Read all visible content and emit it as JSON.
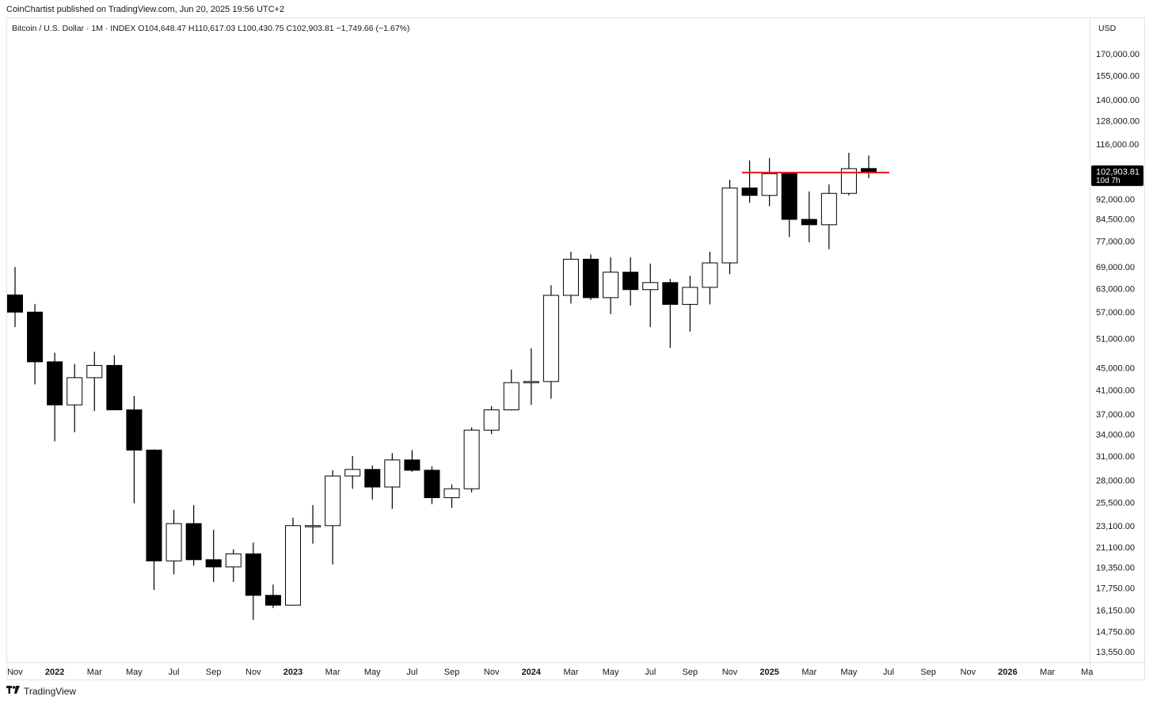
{
  "publisher_line": "CoinChartist published on TradingView.com, Jun 20, 2025 19:56 UTC+2",
  "symbol_line": "Bitcoin / U.S. Dollar · 1M · INDEX   O104,648.47   H110,617.03   L100,430.75   C102,903.81   −1,749.66 (−1.67%)",
  "currency": "USD",
  "footer": {
    "brand": "TradingView",
    "icon": "tradingview-logo-icon"
  },
  "colors": {
    "up_fill": "#ffffff",
    "down_fill": "#000000",
    "outline": "#000000",
    "resistance_line": "#e5141e",
    "price_label_bg": "#000000"
  },
  "chart_data": {
    "type": "candlestick",
    "scale": "log",
    "interval": "1M",
    "grid": false,
    "x_labels": [
      "Nov",
      "2022",
      "Mar",
      "May",
      "Jul",
      "Sep",
      "Nov",
      "2023",
      "Mar",
      "May",
      "Jul",
      "Sep",
      "Nov",
      "2024",
      "Mar",
      "May",
      "Jul",
      "Sep",
      "Nov",
      "2025",
      "Mar",
      "May",
      "Jul",
      "Sep",
      "Nov",
      "2026",
      "Mar",
      "Ma"
    ],
    "y_ticks": [
      "170,000.00",
      "155,000.00",
      "140,000.00",
      "128,000.00",
      "116,000.00",
      "92,000.00",
      "84,500.00",
      "77,000.00",
      "69,000.00",
      "63,000.00",
      "57,000.00",
      "51,000.00",
      "45,000.00",
      "41,000.00",
      "37,000.00",
      "34,000.00",
      "31,000.00",
      "28,000.00",
      "25,500.00",
      "23,100.00",
      "21,100.00",
      "19,350.00",
      "17,750.00",
      "16,150.00",
      "14,750.00",
      "13,550.00"
    ],
    "ohlc": [
      {
        "o": 61300,
        "h": 69000,
        "l": 53500,
        "c": 57000
      },
      {
        "o": 57000,
        "h": 59000,
        "l": 42000,
        "c": 46200
      },
      {
        "o": 46200,
        "h": 48000,
        "l": 33000,
        "c": 38500
      },
      {
        "o": 38500,
        "h": 45800,
        "l": 34300,
        "c": 43200
      },
      {
        "o": 43200,
        "h": 48200,
        "l": 37500,
        "c": 45500
      },
      {
        "o": 45500,
        "h": 47500,
        "l": 37700,
        "c": 37700
      },
      {
        "o": 37700,
        "h": 40000,
        "l": 25400,
        "c": 31800
      },
      {
        "o": 31800,
        "h": 31900,
        "l": 17600,
        "c": 19900
      },
      {
        "o": 19900,
        "h": 24700,
        "l": 18800,
        "c": 23300
      },
      {
        "o": 23300,
        "h": 25200,
        "l": 19500,
        "c": 20000
      },
      {
        "o": 20000,
        "h": 22700,
        "l": 18200,
        "c": 19400
      },
      {
        "o": 19400,
        "h": 20900,
        "l": 18200,
        "c": 20500
      },
      {
        "o": 20500,
        "h": 21500,
        "l": 15500,
        "c": 17200
      },
      {
        "o": 17200,
        "h": 18000,
        "l": 16300,
        "c": 16500
      },
      {
        "o": 16500,
        "h": 23900,
        "l": 16500,
        "c": 23100
      },
      {
        "o": 23100,
        "h": 25200,
        "l": 21400,
        "c": 23100
      },
      {
        "o": 23100,
        "h": 29200,
        "l": 19600,
        "c": 28500
      },
      {
        "o": 28500,
        "h": 31000,
        "l": 27000,
        "c": 29300
      },
      {
        "o": 29300,
        "h": 29800,
        "l": 25800,
        "c": 27200
      },
      {
        "o": 27200,
        "h": 31400,
        "l": 24800,
        "c": 30500
      },
      {
        "o": 30500,
        "h": 31800,
        "l": 29000,
        "c": 29200
      },
      {
        "o": 29200,
        "h": 29700,
        "l": 25300,
        "c": 26000
      },
      {
        "o": 26000,
        "h": 27500,
        "l": 24900,
        "c": 27000
      },
      {
        "o": 27000,
        "h": 35000,
        "l": 26600,
        "c": 34600
      },
      {
        "o": 34600,
        "h": 38300,
        "l": 34000,
        "c": 37700
      },
      {
        "o": 37700,
        "h": 44700,
        "l": 37600,
        "c": 42300
      },
      {
        "o": 42300,
        "h": 48900,
        "l": 38500,
        "c": 42500
      },
      {
        "o": 42500,
        "h": 63900,
        "l": 39500,
        "c": 61200
      },
      {
        "o": 61200,
        "h": 73600,
        "l": 59100,
        "c": 71300
      },
      {
        "o": 71300,
        "h": 72800,
        "l": 60000,
        "c": 60600
      },
      {
        "o": 60600,
        "h": 71900,
        "l": 56500,
        "c": 67500
      },
      {
        "o": 67500,
        "h": 71900,
        "l": 58600,
        "c": 62700
      },
      {
        "o": 62700,
        "h": 70000,
        "l": 53500,
        "c": 64600
      },
      {
        "o": 64600,
        "h": 65600,
        "l": 49000,
        "c": 58900
      },
      {
        "o": 58900,
        "h": 66500,
        "l": 52500,
        "c": 63300
      },
      {
        "o": 63300,
        "h": 73600,
        "l": 58900,
        "c": 70200
      },
      {
        "o": 70200,
        "h": 99800,
        "l": 66900,
        "c": 96400
      },
      {
        "o": 96400,
        "h": 108300,
        "l": 90500,
        "c": 93400
      },
      {
        "o": 93400,
        "h": 109400,
        "l": 89200,
        "c": 102400
      },
      {
        "o": 102400,
        "h": 102500,
        "l": 78300,
        "c": 84400
      },
      {
        "o": 84400,
        "h": 95000,
        "l": 76600,
        "c": 82500
      },
      {
        "o": 82500,
        "h": 97900,
        "l": 74400,
        "c": 94200
      },
      {
        "o": 94200,
        "h": 111900,
        "l": 93400,
        "c": 104600
      },
      {
        "o": 104648.47,
        "h": 110617.03,
        "l": 100430.75,
        "c": 102903.81
      }
    ],
    "resistance_level": 102903.81,
    "last_price_label": "102,903.81",
    "countdown_label": "10d 7h"
  }
}
